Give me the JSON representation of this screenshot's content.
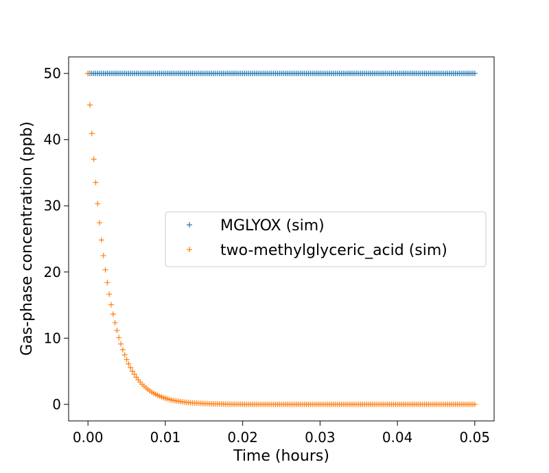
{
  "chart_data": {
    "type": "scatter",
    "marker": "+",
    "xlabel": "Time (hours)",
    "ylabel": "Gas-phase concentration (ppb)",
    "xlim": [
      -0.0025,
      0.0525
    ],
    "ylim": [
      -2.5,
      52.5
    ],
    "xticks": [
      0.0,
      0.01,
      0.02,
      0.03,
      0.04,
      0.05
    ],
    "xtick_labels": [
      "0.00",
      "0.01",
      "0.02",
      "0.03",
      "0.04",
      "0.05"
    ],
    "yticks": [
      0,
      10,
      20,
      30,
      40,
      50
    ],
    "ytick_labels": [
      "0",
      "10",
      "20",
      "30",
      "40",
      "50"
    ],
    "grid": false,
    "legend_position": "center-right",
    "series": [
      {
        "name": "MGLYOX (sim)",
        "color": "#1f77b4",
        "x_start": 0.0,
        "x_step": 0.00025,
        "values": [
          50
        ]
      },
      {
        "name": "two-methylglyceric_acid (sim)",
        "color": "#ff7f0e",
        "x_start": 0.0,
        "x_step": 0.00025,
        "values": [
          50.0,
          45.24,
          40.94,
          37.04,
          33.52,
          30.33,
          27.44,
          24.83,
          22.47,
          20.33,
          18.39,
          16.64,
          15.06,
          13.63,
          12.33,
          11.16,
          10.09,
          9.13,
          8.26,
          7.48,
          6.77,
          6.12,
          5.54,
          5.01,
          4.54,
          4.1,
          3.71,
          3.36,
          3.04,
          2.75,
          2.49,
          2.25,
          2.04,
          1.84,
          1.67,
          1.51,
          1.37,
          1.24,
          1.12,
          1.01,
          0.92,
          0.83,
          0.75,
          0.68,
          0.61,
          0.56,
          0.5,
          0.45,
          0.41,
          0.37,
          0.34,
          0.3,
          0.27,
          0.25,
          0.22,
          0.2,
          0.18,
          0.17,
          0.15,
          0.14,
          0.12,
          0.11,
          0.1,
          0.09,
          0.08,
          0.08,
          0.07,
          0.06,
          0.06,
          0.05,
          0.05,
          0.04,
          0.04,
          0.03,
          0.03,
          0.03,
          0.03,
          0.02,
          0.02,
          0.02,
          0.02
        ],
        "tail_value": 0.0
      }
    ]
  }
}
